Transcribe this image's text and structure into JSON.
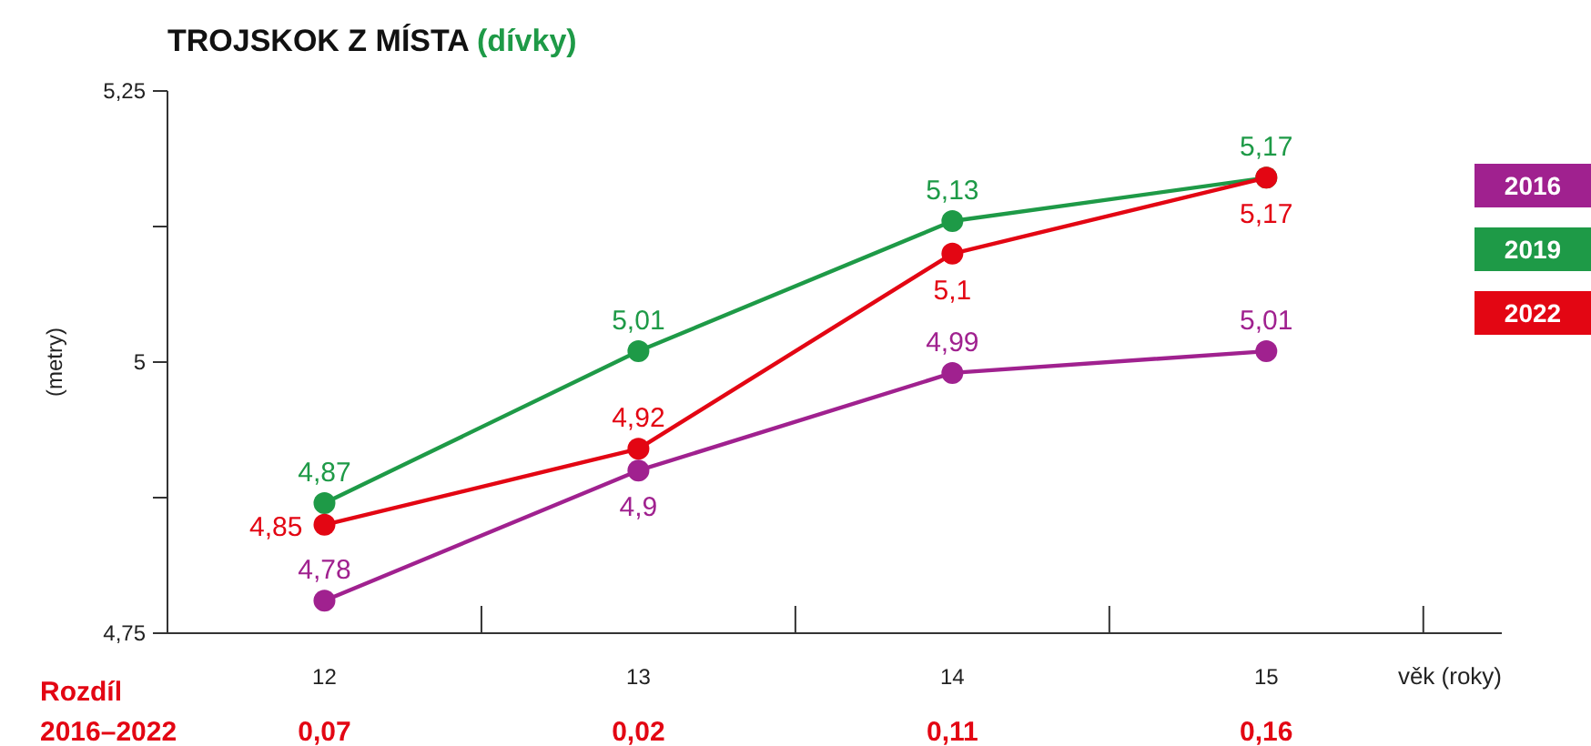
{
  "chart_data": {
    "type": "line",
    "title": "TROJSKOK Z MÍSTA",
    "subtitle": "(dívky)",
    "xlabel": "věk (roky)",
    "ylabel": "(metry)",
    "x": [
      12,
      13,
      14,
      15
    ],
    "xlim": [
      11.5,
      15.75
    ],
    "xticks": [
      12,
      13,
      14,
      15,
      {
        "value": 12.5,
        "label": null
      },
      {
        "value": 13.5,
        "label": null
      },
      {
        "value": 14.5,
        "label": null
      },
      {
        "value": 15.5,
        "label": null
      }
    ],
    "ylim": [
      4.75,
      5.25
    ],
    "yticks": [
      {
        "value": 4.75,
        "label": "4,75"
      },
      {
        "value": 4.875,
        "label": null
      },
      {
        "value": 5,
        "label": "5"
      },
      {
        "value": 5.125,
        "label": null
      },
      {
        "value": 5.25,
        "label": "5,25"
      }
    ],
    "series": [
      {
        "name": "2016",
        "color": "#a0218f",
        "values": [
          4.78,
          4.9,
          4.99,
          5.01
        ],
        "value_labels": [
          "4,78",
          "4,9",
          "4,99",
          "5,01"
        ]
      },
      {
        "name": "2019",
        "color": "#1e9a47",
        "values": [
          4.87,
          5.01,
          5.13,
          5.17
        ],
        "value_labels": [
          "4,87",
          "5,01",
          "5,13",
          "5,17"
        ]
      },
      {
        "name": "2022",
        "color": "#e30613",
        "values": [
          4.85,
          4.92,
          5.1,
          5.17
        ],
        "value_labels": [
          "4,85",
          "4,92",
          "5,1",
          "5,17"
        ]
      }
    ],
    "marker": "circle",
    "line_style": "solid",
    "grid": false,
    "legend": "right",
    "annotations": [
      "Rozdíl 2016–2022",
      "0,07",
      "0,02",
      "0,11",
      "0,16"
    ]
  }
}
